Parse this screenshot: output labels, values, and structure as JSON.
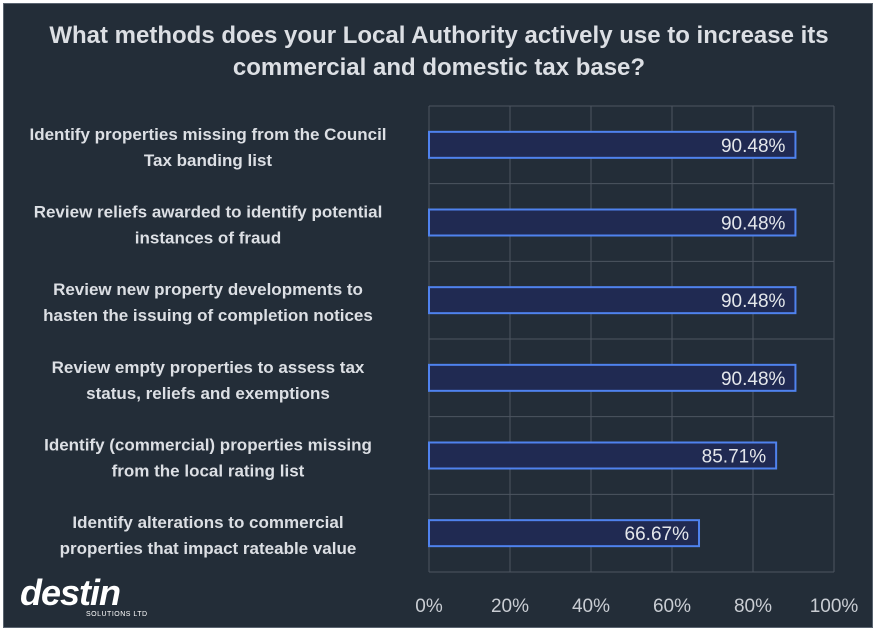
{
  "chart_data": {
    "type": "bar",
    "orientation": "horizontal",
    "title": "What methods does your Local Authority actively use to increase its commercial and domestic tax base?",
    "categories": [
      "Identify properties missing from the Council Tax banding list",
      "Review reliefs awarded to identify potential instances of fraud",
      "Review new property developments to hasten the issuing of completion notices",
      "Review empty properties to assess tax status, reliefs and exemptions",
      "Identify (commercial) properties missing from the local rating list",
      "Identify alterations to commercial properties that impact rateable value"
    ],
    "category_lines": [
      [
        "Identify properties missing from the Council",
        "Tax banding list"
      ],
      [
        "Review reliefs awarded to identify potential",
        "instances of fraud"
      ],
      [
        "Review new property developments to",
        "hasten the issuing of completion notices"
      ],
      [
        "Review empty properties to assess tax",
        "status, reliefs and exemptions"
      ],
      [
        "Identify (commercial) properties missing",
        "from the local rating list"
      ],
      [
        "Identify alterations to commercial",
        "properties that impact rateable value"
      ]
    ],
    "values": [
      90.48,
      90.48,
      90.48,
      90.48,
      85.71,
      66.67
    ],
    "value_labels": [
      "90.48%",
      "90.48%",
      "90.48%",
      "90.48%",
      "85.71%",
      "66.67%"
    ],
    "xlim": [
      0,
      100
    ],
    "xticks": [
      0,
      20,
      40,
      60,
      80,
      100
    ],
    "xtick_labels": [
      "0%",
      "20%",
      "40%",
      "60%",
      "80%",
      "100%"
    ],
    "grid": true,
    "legend": "none"
  },
  "logo": {
    "name": "destin",
    "subtitle": "SOLUTIONS LTD"
  },
  "colors": {
    "background": "#232d38",
    "bar_fill": "#202a52",
    "bar_border": "#4f82ee",
    "grid": "#4d5560",
    "text": "#dcdfe4"
  }
}
